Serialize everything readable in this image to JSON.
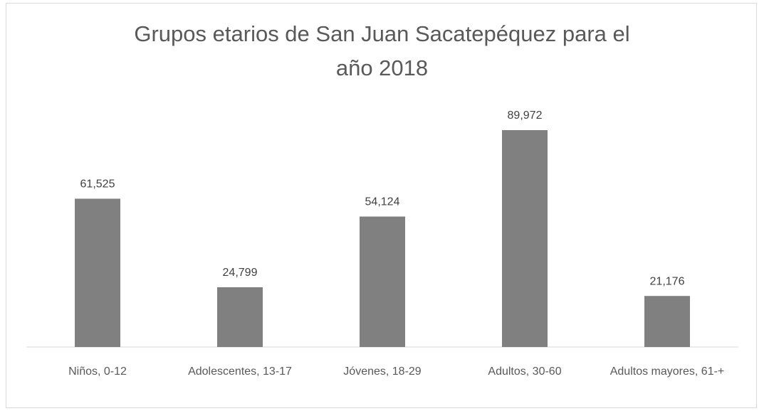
{
  "chart_data": {
    "type": "bar",
    "title": "Grupos etarios de San Juan Sacatepéquez para el año 2018",
    "categories": [
      "Niños, 0-12",
      "Adolescentes, 13-17",
      "Jóvenes, 18-29",
      "Adultos, 30-60",
      "Adultos mayores, 61-+"
    ],
    "values": [
      61525,
      24799,
      54124,
      89972,
      21176
    ],
    "value_labels": [
      "61,525",
      "24,799",
      "54,124",
      "89,972",
      "21,176"
    ],
    "color": "#808080"
  }
}
